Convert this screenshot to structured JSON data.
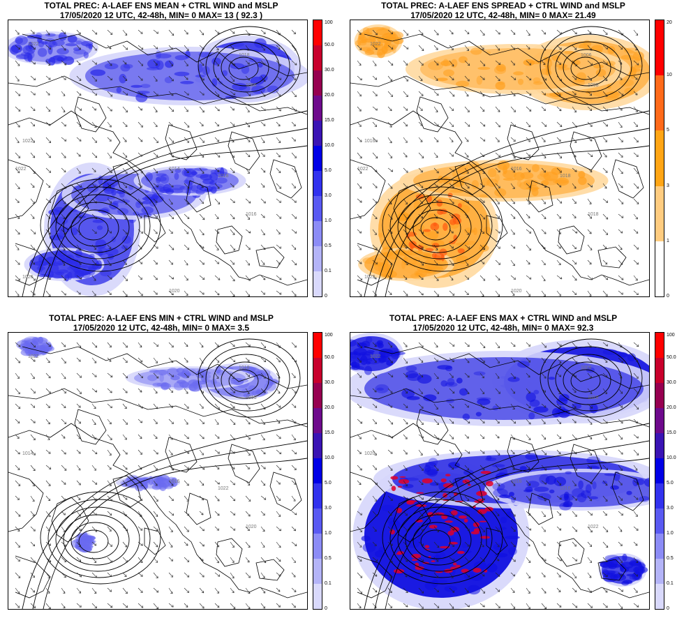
{
  "panels": [
    {
      "id": "mean",
      "title": "TOTAL PREC: A-LAEF ENS MEAN + CTRL WIND and MSLP",
      "subtitle": "17/05/2020 12 UTC, 42-48h, MIN= 0  MAX= 13  ( 92.3 )",
      "colorbar": {
        "labels": [
          "100",
          "50.0",
          "30.0",
          "20.0",
          "15.0",
          "10.0",
          "5.0",
          "3.0",
          "1.0",
          "0.5",
          "0.1",
          "0"
        ],
        "colors": [
          "#ff0000",
          "#c8002c",
          "#960050",
          "#6e0a8c",
          "#3a14b4",
          "#0000e6",
          "#3232ee",
          "#5a5af2",
          "#8c8cf6",
          "#b4b4f8",
          "#d9d9fc"
        ]
      },
      "field_color": "#2a2ae8",
      "isobar_labels": [
        "1022",
        "1018",
        "1006",
        "1014",
        "1018",
        "1016",
        "1022",
        "1022",
        "1020",
        "1020"
      ]
    },
    {
      "id": "spread",
      "title": "TOTAL PREC: A-LAEF ENS SPREAD + CTRL WIND and MSLP",
      "subtitle": "17/05/2020 12 UTC, 42-48h, MIN= 0  MAX= 21.49",
      "colorbar": {
        "labels": [
          "20",
          "10",
          "5",
          "3",
          "1",
          "0"
        ],
        "colors": [
          "#ff0000",
          "#ff6a1a",
          "#ffa515",
          "#ffcc80",
          "#ffffff"
        ]
      },
      "field_color": "#ffa020",
      "isobar_labels": [
        "1022",
        "1006",
        "1008",
        "1016",
        "1018",
        "1018",
        "1016",
        "1022",
        "1022",
        "1020"
      ]
    },
    {
      "id": "min",
      "title": "TOTAL PREC: A-LAEF ENS MIN + CTRL WIND and MSLP",
      "subtitle": "17/05/2020 12 UTC, 42-48h, MIN= 0  MAX= 3.5",
      "colorbar": {
        "labels": [
          "100",
          "50.0",
          "30.0",
          "20.0",
          "15.0",
          "10.0",
          "5.0",
          "3.0",
          "1.0",
          "0.5",
          "0.1",
          "0"
        ],
        "colors": [
          "#ff0000",
          "#c8002c",
          "#960050",
          "#6e0a8c",
          "#3a14b4",
          "#0000e6",
          "#3232ee",
          "#5a5af2",
          "#8c8cf6",
          "#b4b4f8",
          "#d9d9fc"
        ]
      },
      "field_color": "#6a6af0",
      "isobar_labels": [
        "1022",
        "1018",
        "1016",
        "1016",
        "1022",
        "1020",
        "1014"
      ]
    },
    {
      "id": "max",
      "title": "TOTAL PREC: A-LAEF ENS MAX + CTRL WIND and MSLP",
      "subtitle": "17/05/2020 12 UTC, 42-48h, MIN= 0  MAX= 92.3",
      "colorbar": {
        "labels": [
          "100",
          "50.0",
          "30.0",
          "20.0",
          "15.0",
          "10.0",
          "5.0",
          "3.0",
          "1.0",
          "0.5",
          "0.1",
          "0"
        ],
        "colors": [
          "#ff0000",
          "#c8002c",
          "#960050",
          "#6e0a8c",
          "#3a14b4",
          "#0000e6",
          "#3232ee",
          "#5a5af2",
          "#8c8cf6",
          "#b4b4f8",
          "#d9d9fc"
        ]
      },
      "field_color": "#1010e0",
      "isobar_labels": [
        "1022",
        "1006",
        "1018",
        "1016",
        "1016",
        "1022",
        "1020"
      ]
    }
  ]
}
